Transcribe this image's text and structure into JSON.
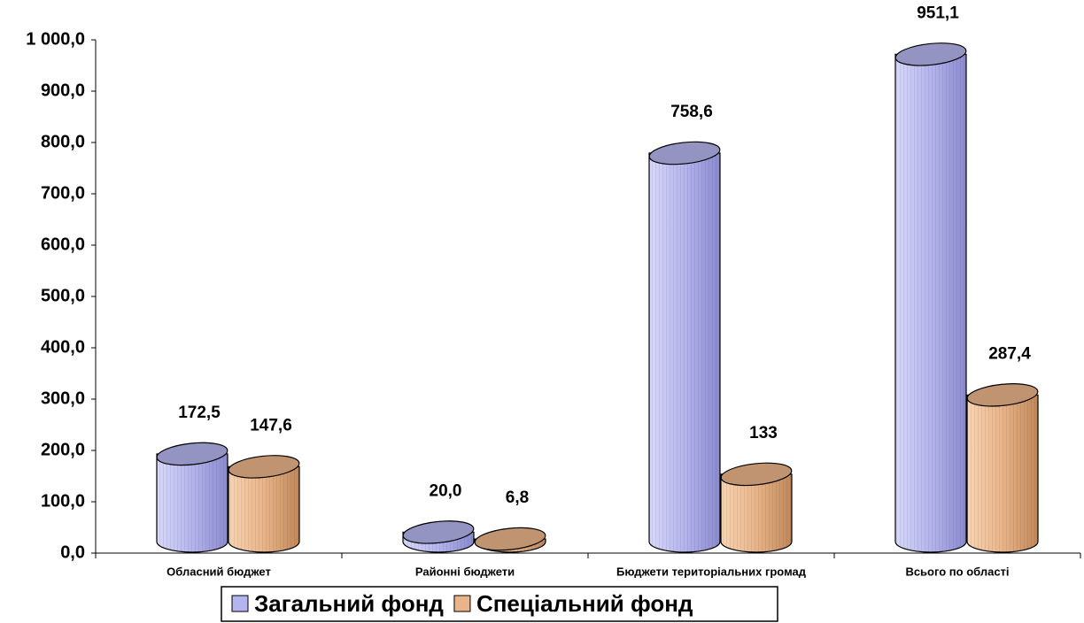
{
  "chart_data": {
    "type": "cylinder-bar",
    "categories": [
      "Обласний бюджет",
      "Районні бюджети",
      "Бюджети територіальних громад",
      "Всього по області"
    ],
    "series": [
      {
        "name": "Загальний фонд",
        "color": "#b4b4ee",
        "values": [
          172.5,
          20.0,
          758.6,
          951.1
        ],
        "value_labels": [
          "172,5",
          "20,0",
          "758,6",
          "951,1"
        ]
      },
      {
        "name": "Спеціальний фонд",
        "color": "#eab488",
        "values": [
          147.6,
          6.8,
          133,
          287.4
        ],
        "value_labels": [
          "147,6",
          "6,8",
          "133",
          "287,4"
        ]
      }
    ],
    "ylim": [
      0,
      1000
    ],
    "yticks": [
      {
        "value": 0,
        "label": "0,0"
      },
      {
        "value": 100,
        "label": "100,0"
      },
      {
        "value": 200,
        "label": "200,0"
      },
      {
        "value": 300,
        "label": "300,0"
      },
      {
        "value": 400,
        "label": "400,0"
      },
      {
        "value": 500,
        "label": "500,0"
      },
      {
        "value": 600,
        "label": "600,0"
      },
      {
        "value": 700,
        "label": "700,0"
      },
      {
        "value": 800,
        "label": "800,0"
      },
      {
        "value": 900,
        "label": "900,0"
      },
      {
        "value": 1000,
        "label": "1 000,0"
      }
    ],
    "legend": "bottom"
  }
}
